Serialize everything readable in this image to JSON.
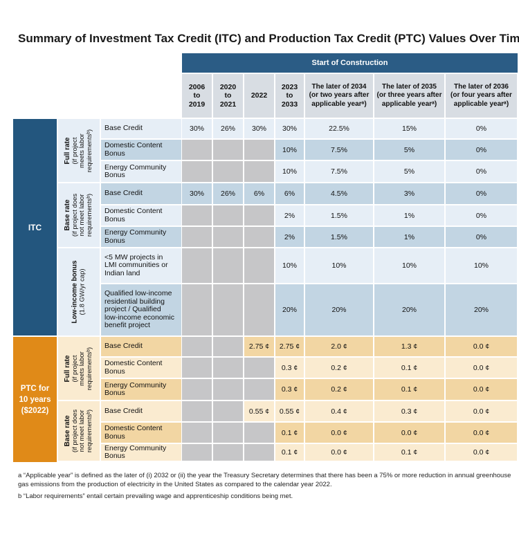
{
  "title": "Summary of Investment Tax Credit (ITC) and Production Tax Credit (PTC) Values Over Time",
  "header": {
    "span_label": "Start of Construction",
    "columns": [
      "2006\nto\n2019",
      "2020\nto\n2021",
      "2022",
      "2023\nto\n2033",
      "The later of 2034\n(or two years after\napplicable yearᵃ)",
      "The later of 2035\n(or three years after\napplicable yearᵃ)",
      "The later of 2036\n(or four years after\napplicable yearᵃ)"
    ]
  },
  "groups": [
    {
      "label": "ITC"
    },
    {
      "label": "PTC for\n10 years\n($2022)"
    }
  ],
  "subgroups": [
    {
      "title": "Full rate",
      "note": "(if project\nmeets labor\nrequirementsᵇ)"
    },
    {
      "title": "Base rate",
      "note": "(if project does\nnot meet labor\nrequirementsᵇ)"
    },
    {
      "title": "Low-income bonus",
      "note": "(1.8 GW/yr cap)"
    },
    {
      "title": "Full rate",
      "note": "(if project\nmeets labor\nrequirementsᵇ)"
    },
    {
      "title": "Base rate",
      "note": "(if project does\nnot meet labor\nrequirementsᵇ)"
    }
  ],
  "rows": [
    {
      "label": "Base Credit",
      "values": [
        "30%",
        "26%",
        "30%",
        "30%",
        "22.5%",
        "15%",
        "0%"
      ]
    },
    {
      "label": "Domestic Content\nBonus",
      "values": [
        "",
        "",
        "",
        "10%",
        "7.5%",
        "5%",
        "0%"
      ]
    },
    {
      "label": "Energy Community\nBonus",
      "values": [
        "",
        "",
        "",
        "10%",
        "7.5%",
        "5%",
        "0%"
      ]
    },
    {
      "label": "Base Credit",
      "values": [
        "30%",
        "26%",
        "6%",
        "6%",
        "4.5%",
        "3%",
        "0%"
      ]
    },
    {
      "label": "Domestic Content\nBonus",
      "values": [
        "",
        "",
        "",
        "2%",
        "1.5%",
        "1%",
        "0%"
      ]
    },
    {
      "label": "Energy Community\nBonus",
      "values": [
        "",
        "",
        "",
        "2%",
        "1.5%",
        "1%",
        "0%"
      ]
    },
    {
      "label": "<5 MW projects in\nLMI communities or\nIndian land",
      "values": [
        "",
        "",
        "",
        "10%",
        "10%",
        "10%",
        "10%"
      ]
    },
    {
      "label": "Qualified low-income\nresidential building\nproject / Qualified\nlow-income economic\nbenefit project",
      "values": [
        "",
        "",
        "",
        "20%",
        "20%",
        "20%",
        "20%"
      ]
    },
    {
      "label": "Base Credit",
      "values": [
        "",
        "",
        "2.75 ¢",
        "2.75 ¢",
        "2.0 ¢",
        "1.3 ¢",
        "0.0 ¢"
      ]
    },
    {
      "label": "Domestic Content\nBonus",
      "values": [
        "",
        "",
        "",
        "0.3 ¢",
        "0.2 ¢",
        "0.1 ¢",
        "0.0 ¢"
      ]
    },
    {
      "label": "Energy Community\nBonus",
      "values": [
        "",
        "",
        "",
        "0.3 ¢",
        "0.2 ¢",
        "0.1 ¢",
        "0.0 ¢"
      ]
    },
    {
      "label": "Base Credit",
      "values": [
        "",
        "",
        "0.55 ¢",
        "0.55 ¢",
        "0.4 ¢",
        "0.3 ¢",
        "0.0 ¢"
      ]
    },
    {
      "label": "Domestic Content\nBonus",
      "values": [
        "",
        "",
        "",
        "0.1 ¢",
        "0.0 ¢",
        "0.0 ¢",
        "0.0 ¢"
      ]
    },
    {
      "label": "Energy Community\nBonus",
      "values": [
        "",
        "",
        "",
        "0.1 ¢",
        "0.0 ¢",
        "0.1 ¢",
        "0.0 ¢"
      ]
    }
  ],
  "footnotes": [
    "a “Applicable year” is defined as the later of (i) 2032 or (ii) the year the Treasury Secretary determines that there has been a 75% or more reduction in annual greenhouse gas emissions from the production of electricity in the United States as compared to the calendar year 2022.",
    "b “Labor requirements” entail certain prevailing wage and apprenticeship conditions being met."
  ],
  "colors": {
    "itc_group": "#23567e",
    "ptc_group": "#e08a18",
    "header_dark": "#2b5c85",
    "header_light": "#d8dde3",
    "itc_light": "#e6eef6",
    "itc_dark": "#c2d5e3",
    "ptc_light": "#faebd0",
    "ptc_dark": "#f2d6a3",
    "na_gray": "#c6c6c8"
  }
}
